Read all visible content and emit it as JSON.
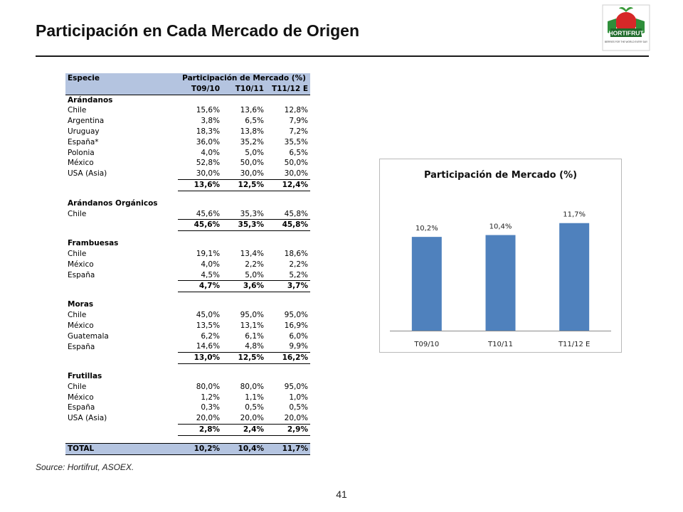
{
  "title": "Participación en Cada Mercado de Origen",
  "logo": {
    "text": "HORTIFRUT",
    "tagline": "BERRIES FOR THE WORLD EVERY DAY"
  },
  "table": {
    "header_species": "Especie",
    "header_group": "Participación de Mercado (%)",
    "columns": [
      "T09/10",
      "T10/11",
      "T11/12 E"
    ],
    "sections": [
      {
        "name": "Arándanos",
        "rows": [
          {
            "label": "Chile",
            "values": [
              "15,6%",
              "13,6%",
              "12,8%"
            ]
          },
          {
            "label": "Argentina",
            "values": [
              "3,8%",
              "6,5%",
              "7,9%"
            ]
          },
          {
            "label": "Uruguay",
            "values": [
              "18,3%",
              "13,8%",
              "7,2%"
            ]
          },
          {
            "label": "España*",
            "values": [
              "36,0%",
              "35,2%",
              "35,5%"
            ]
          },
          {
            "label": "Polonia",
            "values": [
              "4,0%",
              "5,0%",
              "6,5%"
            ]
          },
          {
            "label": "México",
            "values": [
              "52,8%",
              "50,0%",
              "50,0%"
            ]
          },
          {
            "label": "USA (Asia)",
            "values": [
              "30,0%",
              "30,0%",
              "30,0%"
            ]
          }
        ],
        "total": [
          "13,6%",
          "12,5%",
          "12,4%"
        ]
      },
      {
        "name": "Arándanos Orgánicos",
        "rows": [
          {
            "label": "Chile",
            "values": [
              "45,6%",
              "35,3%",
              "45,8%"
            ]
          }
        ],
        "total": [
          "45,6%",
          "35,3%",
          "45,8%"
        ]
      },
      {
        "name": "Frambuesas",
        "rows": [
          {
            "label": "Chile",
            "values": [
              "19,1%",
              "13,4%",
              "18,6%"
            ]
          },
          {
            "label": "México",
            "values": [
              "4,0%",
              "2,2%",
              "2,2%"
            ]
          },
          {
            "label": "España",
            "values": [
              "4,5%",
              "5,0%",
              "5,2%"
            ]
          }
        ],
        "total": [
          "4,7%",
          "3,6%",
          "3,7%"
        ]
      },
      {
        "name": "Moras",
        "rows": [
          {
            "label": "Chile",
            "values": [
              "45,0%",
              "95,0%",
              "95,0%"
            ]
          },
          {
            "label": "México",
            "values": [
              "13,5%",
              "13,1%",
              "16,9%"
            ]
          },
          {
            "label": "Guatemala",
            "values": [
              "6,2%",
              "6,1%",
              "6,0%"
            ]
          },
          {
            "label": "España",
            "values": [
              "14,6%",
              "4,8%",
              "9,9%"
            ]
          }
        ],
        "total": [
          "13,0%",
          "12,5%",
          "16,2%"
        ]
      },
      {
        "name": "Frutillas",
        "rows": [
          {
            "label": "Chile",
            "values": [
              "80,0%",
              "80,0%",
              "95,0%"
            ]
          },
          {
            "label": "México",
            "values": [
              "1,2%",
              "1,1%",
              "1,0%"
            ]
          },
          {
            "label": "España",
            "values": [
              "0,3%",
              "0,5%",
              "0,5%"
            ]
          },
          {
            "label": "USA (Asia)",
            "values": [
              "20,0%",
              "20,0%",
              "20,0%"
            ]
          }
        ],
        "total": [
          "2,8%",
          "2,4%",
          "2,9%"
        ]
      }
    ],
    "grand_total": {
      "label": "TOTAL",
      "values": [
        "10,2%",
        "10,4%",
        "11,7%"
      ]
    }
  },
  "chart_data": {
    "type": "bar",
    "title": "Participación de Mercado (%)",
    "categories": [
      "T09/10",
      "T10/11",
      "T11/12 E"
    ],
    "values": [
      10.2,
      10.4,
      11.7
    ],
    "value_labels": [
      "10,2%",
      "10,4%",
      "11,7%"
    ],
    "ylim": [
      0,
      14
    ],
    "grid": false,
    "color": "#4f81bd"
  },
  "source": "Source: Hortifrut, ASOEX.",
  "page_number": "41"
}
